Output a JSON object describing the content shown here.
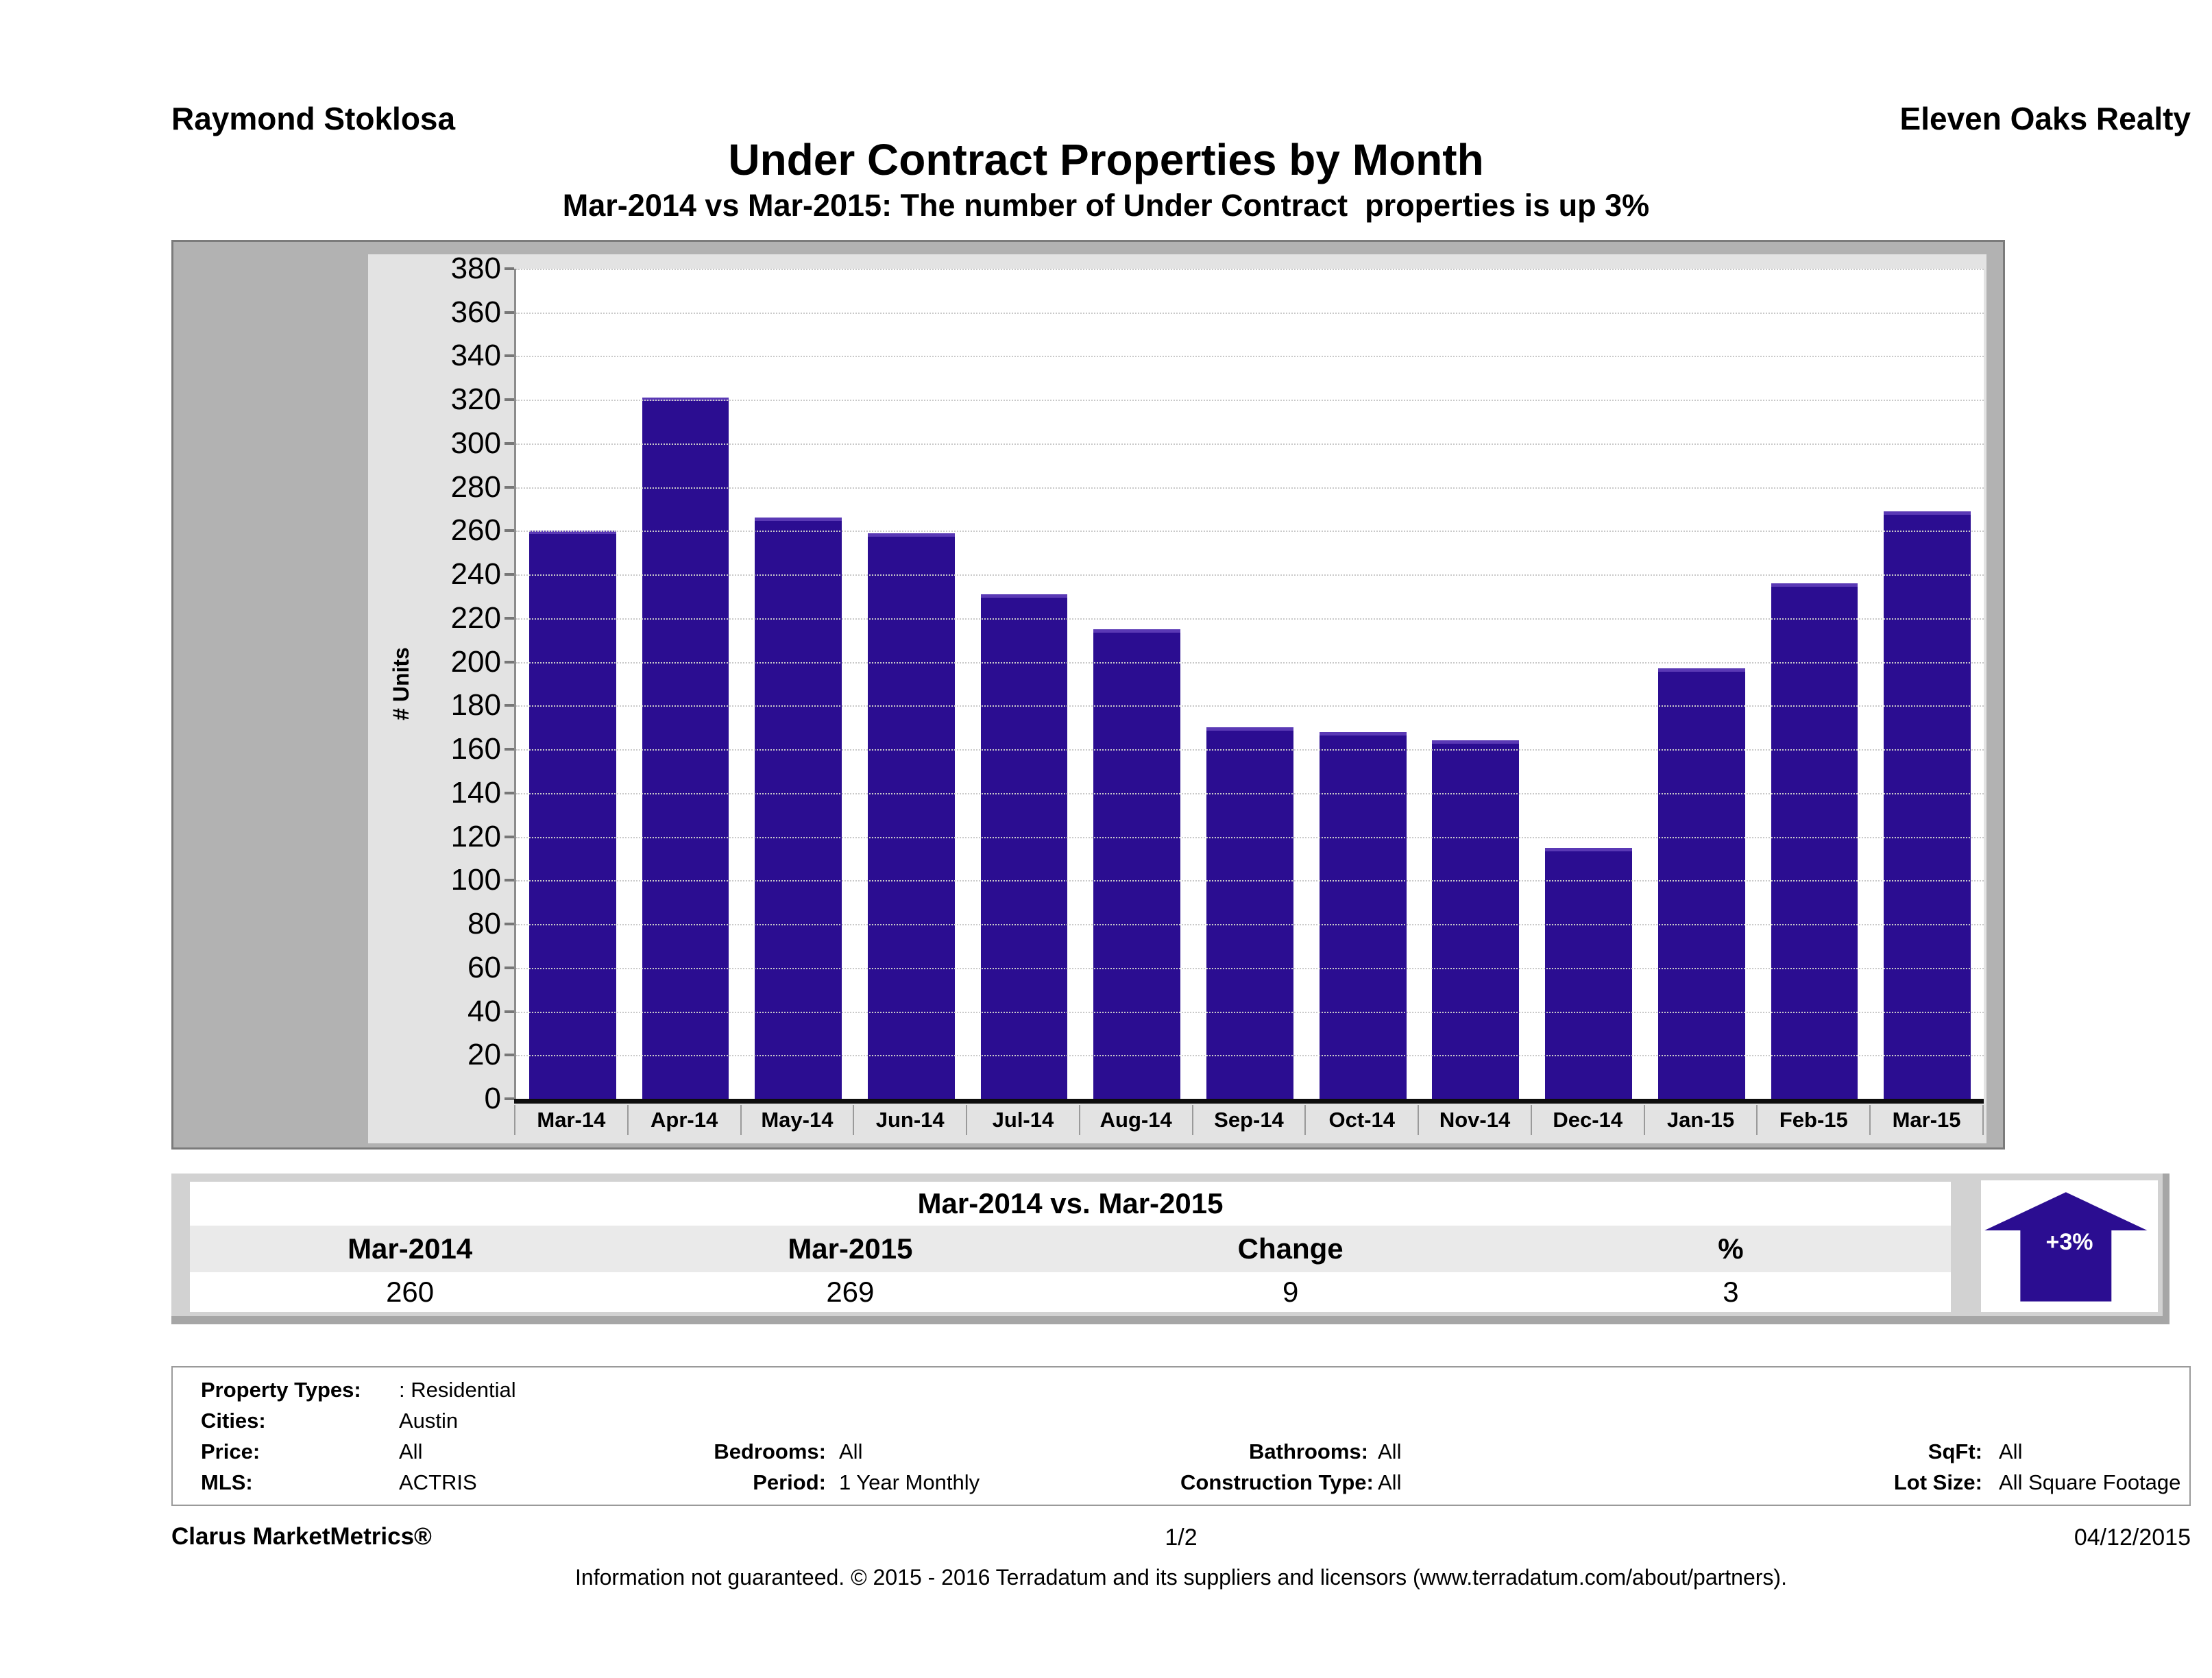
{
  "header": {
    "left_name": "Raymond Stoklosa",
    "right_name": "Eleven Oaks Realty"
  },
  "chart_data": {
    "type": "bar",
    "title": "Under Contract Properties by Month",
    "subtitle": "Mar-2014 vs Mar-2015: The number of Under Contract  properties is up 3%",
    "ylabel": "# Units",
    "xlabel": "",
    "categories": [
      "Mar-14",
      "Apr-14",
      "May-14",
      "Jun-14",
      "Jul-14",
      "Aug-14",
      "Sep-14",
      "Oct-14",
      "Nov-14",
      "Dec-14",
      "Jan-15",
      "Feb-15",
      "Mar-15"
    ],
    "values": [
      260,
      321,
      266,
      259,
      231,
      215,
      170,
      168,
      164,
      115,
      197,
      236,
      269
    ],
    "ylim": [
      0,
      380
    ],
    "ytick_step": 20,
    "grid": "horizontal-dotted",
    "legend": "none",
    "bar_color": "#2b0d91"
  },
  "comparison": {
    "title": "Mar-2014 vs. Mar-2015",
    "columns": [
      "Mar-2014",
      "Mar-2015",
      "Change",
      "%"
    ],
    "values": [
      "260",
      "269",
      "9",
      "3"
    ],
    "badge": {
      "label": "+3%",
      "direction": "up",
      "color": "#2b0d91"
    }
  },
  "filters": {
    "rows": [
      [
        {
          "label": "Property Types:",
          "value": ": Residential"
        }
      ],
      [
        {
          "label": "Cities:",
          "value": "Austin"
        }
      ],
      [
        {
          "label": "Price:",
          "value": "All"
        },
        {
          "label": "Bedrooms:",
          "value": "All"
        },
        {
          "label": "Bathrooms:",
          "value": "All"
        },
        {
          "label": "SqFt:",
          "value": "All"
        }
      ],
      [
        {
          "label": "MLS:",
          "value": "ACTRIS"
        },
        {
          "label": "Period:",
          "value": "1 Year Monthly"
        },
        {
          "label": "Construction Type:",
          "value": "All"
        },
        {
          "label": "Lot Size:",
          "value": "All Square Footage"
        }
      ]
    ]
  },
  "footer": {
    "brand": "Clarus MarketMetrics®",
    "page": "1/2",
    "date": "04/12/2015",
    "disclaimer": "Information not guaranteed. © 2015 - 2016 Terradatum and its suppliers and licensors (www.terradatum.com/about/partners)."
  }
}
